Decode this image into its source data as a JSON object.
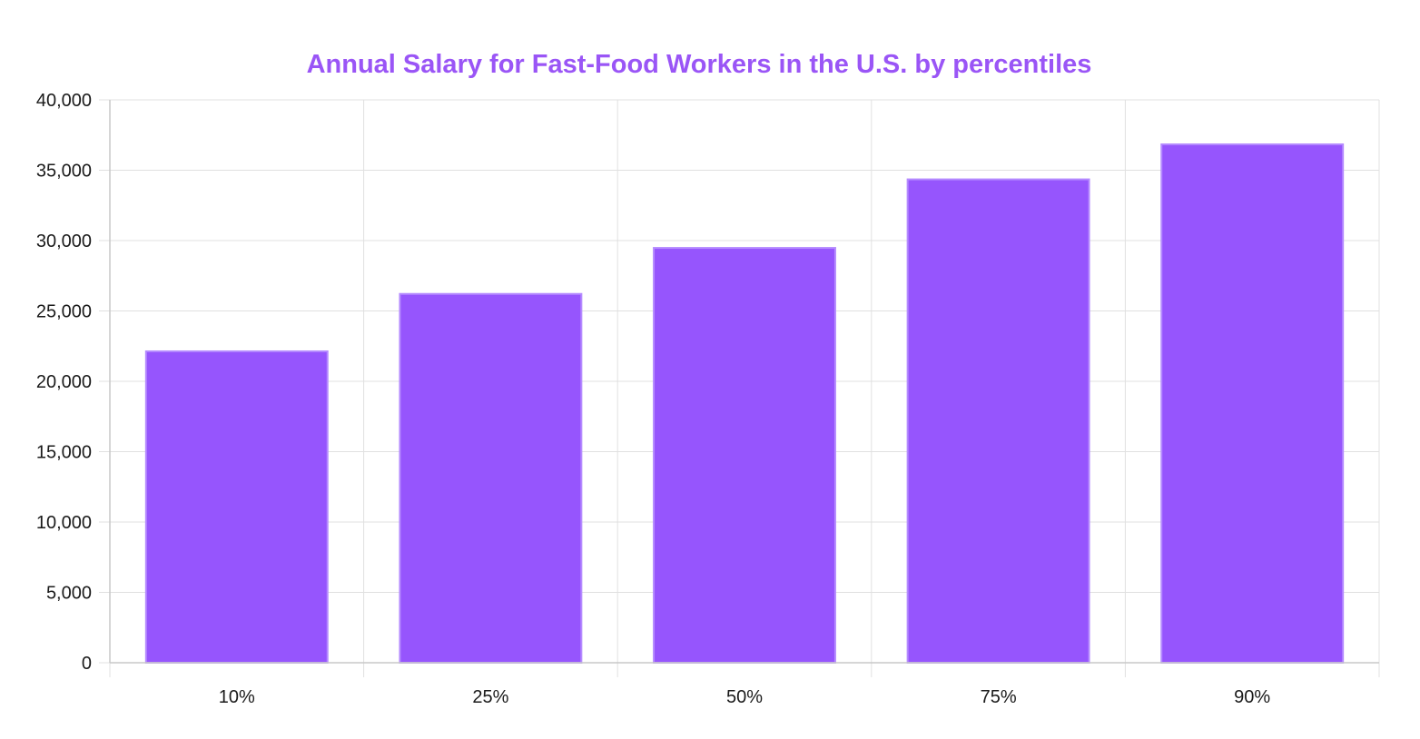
{
  "chart_data": {
    "type": "bar",
    "title": "Annual Salary for Fast-Food Workers in the U.S. by percentiles",
    "categories": [
      "10%",
      "25%",
      "50%",
      "75%",
      "90%"
    ],
    "values": [
      22130,
      26210,
      29480,
      34350,
      36840
    ],
    "ylim": [
      0,
      40000
    ],
    "y_ticks": [
      "0",
      "5,000",
      "10,000",
      "15,000",
      "20,000",
      "25,000",
      "30,000",
      "35,000",
      "40,000"
    ],
    "y_tick_values": [
      0,
      5000,
      10000,
      15000,
      20000,
      25000,
      30000,
      35000,
      40000
    ],
    "grid": true,
    "legend": "none",
    "colors": {
      "bar": "#9655fd",
      "bar_border": "#b58bff",
      "title": "#9a55f6",
      "grid": "#e0e0e0",
      "axis": "#c8c8c8"
    }
  }
}
